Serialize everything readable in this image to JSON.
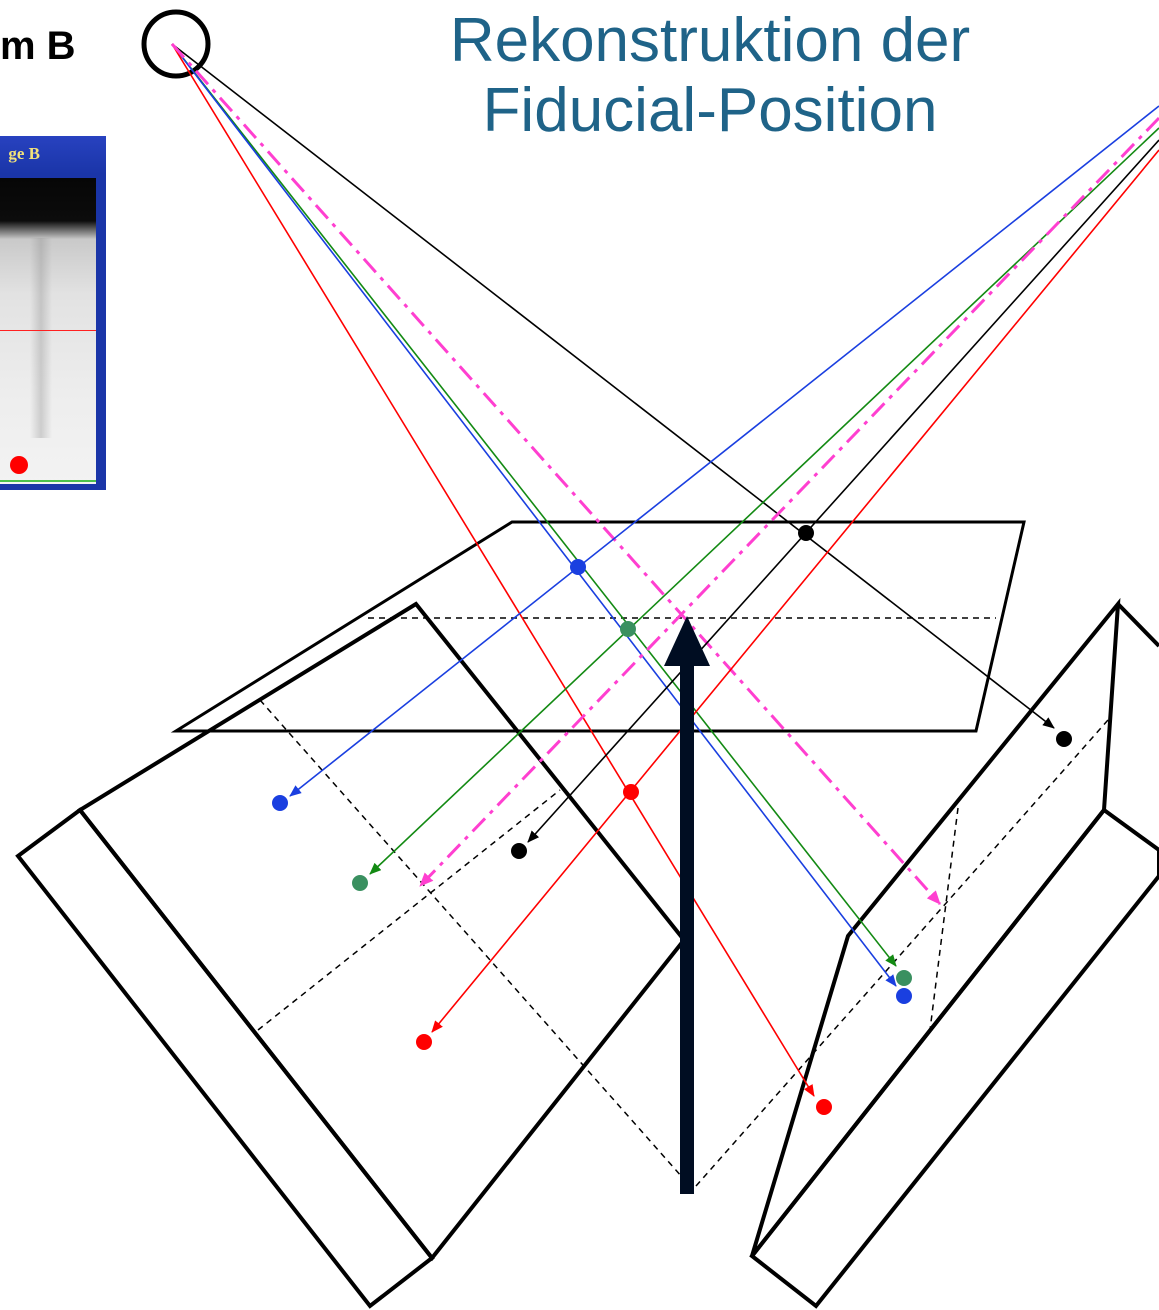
{
  "title_line1": "Rekonstruktion der",
  "title_line2": "Fiducial-Position",
  "system_label": "m B",
  "xray_window_title": "ge B",
  "colors": {
    "title": "#1f6388",
    "blue": "#1a3fe0",
    "green": "#138a13",
    "black": "#000000",
    "red": "#ff0000",
    "magenta": "#ff3fd0",
    "teal_dot": "#3a9060"
  }
}
